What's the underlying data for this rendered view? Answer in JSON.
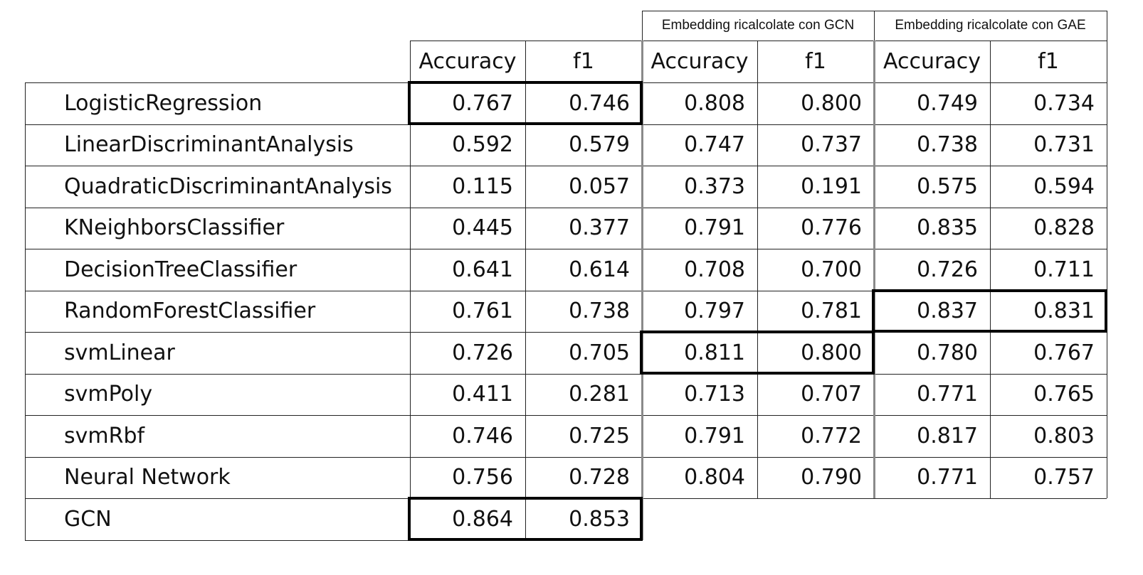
{
  "headers": {
    "group_gcn": "Embedding ricalcolate con GCN",
    "group_gae": "Embedding ricalcolate con GAE",
    "accuracy": "Accuracy",
    "f1": "f1"
  },
  "rows": [
    {
      "name": "LogisticRegression",
      "base_acc": "0.767",
      "base_f1": "0.746",
      "gcn_acc": "0.808",
      "gcn_f1": "0.800",
      "gae_acc": "0.749",
      "gae_f1": "0.734"
    },
    {
      "name": "LinearDiscriminantAnalysis",
      "base_acc": "0.592",
      "base_f1": "0.579",
      "gcn_acc": "0.747",
      "gcn_f1": "0.737",
      "gae_acc": "0.738",
      "gae_f1": "0.731"
    },
    {
      "name": "QuadraticDiscriminantAnalysis",
      "base_acc": "0.115",
      "base_f1": "0.057",
      "gcn_acc": "0.373",
      "gcn_f1": "0.191",
      "gae_acc": "0.575",
      "gae_f1": "0.594"
    },
    {
      "name": "KNeighborsClassifier",
      "base_acc": "0.445",
      "base_f1": "0.377",
      "gcn_acc": "0.791",
      "gcn_f1": "0.776",
      "gae_acc": "0.835",
      "gae_f1": "0.828"
    },
    {
      "name": "DecisionTreeClassifier",
      "base_acc": "0.641",
      "base_f1": "0.614",
      "gcn_acc": "0.708",
      "gcn_f1": "0.700",
      "gae_acc": "0.726",
      "gae_f1": "0.711"
    },
    {
      "name": "RandomForestClassifier",
      "base_acc": "0.761",
      "base_f1": "0.738",
      "gcn_acc": "0.797",
      "gcn_f1": "0.781",
      "gae_acc": "0.837",
      "gae_f1": "0.831"
    },
    {
      "name": "svmLinear",
      "base_acc": "0.726",
      "base_f1": "0.705",
      "gcn_acc": "0.811",
      "gcn_f1": "0.800",
      "gae_acc": "0.780",
      "gae_f1": "0.767"
    },
    {
      "name": "svmPoly",
      "base_acc": "0.411",
      "base_f1": "0.281",
      "gcn_acc": "0.713",
      "gcn_f1": "0.707",
      "gae_acc": "0.771",
      "gae_f1": "0.765"
    },
    {
      "name": "svmRbf",
      "base_acc": "0.746",
      "base_f1": "0.725",
      "gcn_acc": "0.791",
      "gcn_f1": "0.772",
      "gae_acc": "0.817",
      "gae_f1": "0.803"
    },
    {
      "name": "Neural Network",
      "base_acc": "0.756",
      "base_f1": "0.728",
      "gcn_acc": "0.804",
      "gcn_f1": "0.790",
      "gae_acc": "0.771",
      "gae_f1": "0.757"
    },
    {
      "name": "GCN",
      "base_acc": "0.864",
      "base_f1": "0.853",
      "gcn_acc": "",
      "gcn_f1": "",
      "gae_acc": "",
      "gae_f1": ""
    }
  ],
  "highlighted": [
    {
      "row": "LogisticRegression",
      "section": "base"
    },
    {
      "row": "GCN",
      "section": "base"
    },
    {
      "row": "svmLinear",
      "section": "gcn"
    },
    {
      "row": "RandomForestClassifier",
      "section": "gae"
    }
  ]
}
